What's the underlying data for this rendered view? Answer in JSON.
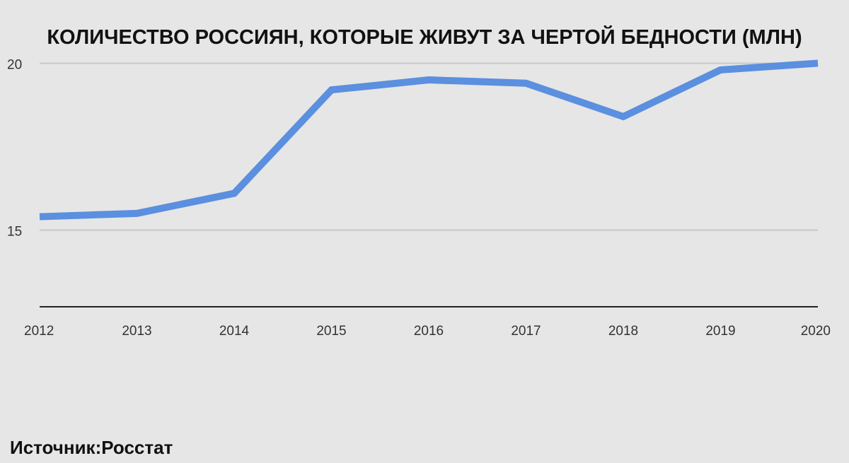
{
  "chart_data": {
    "type": "line",
    "title": "КОЛИЧЕСТВО РОССИЯН, КОТОРЫЕ ЖИВУТ ЗА ЧЕРТОЙ БЕДНОСТИ (МЛН)",
    "xlabel": "",
    "ylabel": "",
    "categories": [
      "2012",
      "2013",
      "2014",
      "2015",
      "2016",
      "2017",
      "2018",
      "2019",
      "2020"
    ],
    "series": [
      {
        "color": "#5b8fdf",
        "values": [
          15.4,
          15.5,
          16.1,
          19.2,
          19.5,
          19.4,
          18.4,
          19.8,
          20.0
        ]
      }
    ],
    "yticks": [
      15,
      20
    ],
    "ylim": [
      12.7,
      21.2
    ],
    "grid": true,
    "legend": "none"
  },
  "footer": {
    "source": "Источник:Росстат"
  },
  "colors": {
    "background": "#e6e6e6",
    "line": "#5b8fdf",
    "grid": "#c8c8c8",
    "axis": "#222222"
  }
}
